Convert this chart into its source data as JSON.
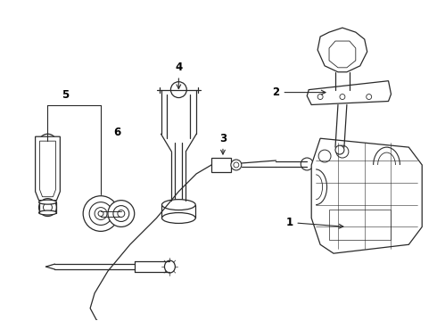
{
  "background_color": "#ffffff",
  "line_color": "#2a2a2a",
  "fig_width": 4.9,
  "fig_height": 3.6,
  "dpi": 100,
  "font_size": 8.5
}
